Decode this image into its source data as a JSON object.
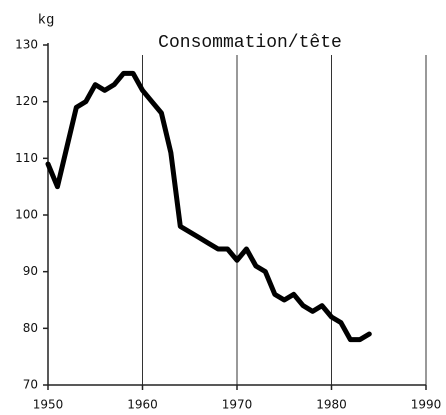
{
  "chart_data": {
    "type": "line",
    "title": "Consommation/tête",
    "ylabel": "kg",
    "x": [
      1950,
      1951,
      1952,
      1953,
      1954,
      1955,
      1956,
      1957,
      1958,
      1959,
      1960,
      1961,
      1962,
      1963,
      1964,
      1965,
      1966,
      1967,
      1968,
      1969,
      1970,
      1971,
      1972,
      1973,
      1974,
      1975,
      1976,
      1977,
      1978,
      1979,
      1980,
      1981,
      1982,
      1983,
      1984
    ],
    "series": [
      {
        "name": "Consommation/tête",
        "color": "#000000",
        "values": [
          109,
          105,
          112,
          119,
          120,
          123,
          122,
          123,
          125,
          125,
          122,
          120,
          118,
          111,
          98,
          97,
          96,
          95,
          94,
          94,
          92,
          94,
          91,
          90,
          86,
          85,
          86,
          84,
          83,
          84,
          82,
          81,
          78,
          78,
          79
        ]
      }
    ],
    "xlim": [
      1950,
      1990
    ],
    "xticks": [
      1950,
      1960,
      1970,
      1980,
      1990
    ],
    "ylim": [
      70,
      130
    ],
    "yticks": [
      70,
      80,
      90,
      100,
      110,
      120,
      130
    ],
    "grid": "x"
  }
}
